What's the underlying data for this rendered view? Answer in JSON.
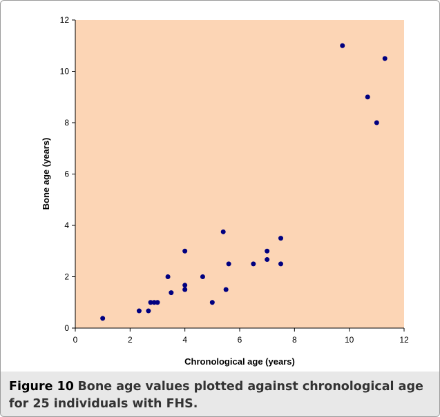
{
  "chart_data": {
    "type": "scatter",
    "color": "#000080",
    "background": "#fcd5b5",
    "x_label": "Chronological age (years)",
    "y_label": "Bone age (years)",
    "xlim": [
      0,
      12
    ],
    "xticks": [
      0,
      2,
      4,
      6,
      8,
      10,
      12
    ],
    "ylim": [
      0,
      12
    ],
    "yticks": [
      0,
      2,
      4,
      6,
      8,
      10,
      12
    ],
    "x": [
      1,
      2.33,
      2.67,
      2.75,
      2.88,
      3,
      3.38,
      3.5,
      4,
      4,
      4,
      4.65,
      5,
      5.4,
      5.5,
      5.6,
      6.5,
      7,
      7,
      7.5,
      7.5,
      9.75,
      10.67,
      11,
      11.3
    ],
    "values": [
      0.38,
      0.67,
      0.67,
      1,
      1,
      1,
      2,
      1.38,
      1.5,
      1.67,
      3,
      2,
      1,
      3.75,
      1.5,
      2.5,
      2.5,
      3,
      2.67,
      3.5,
      2.5,
      11,
      9,
      8,
      10.5
    ]
  },
  "caption": {
    "label": "Figure 10",
    "text": "Bone age values plotted against chronological age for 25 individuals with FHS."
  }
}
